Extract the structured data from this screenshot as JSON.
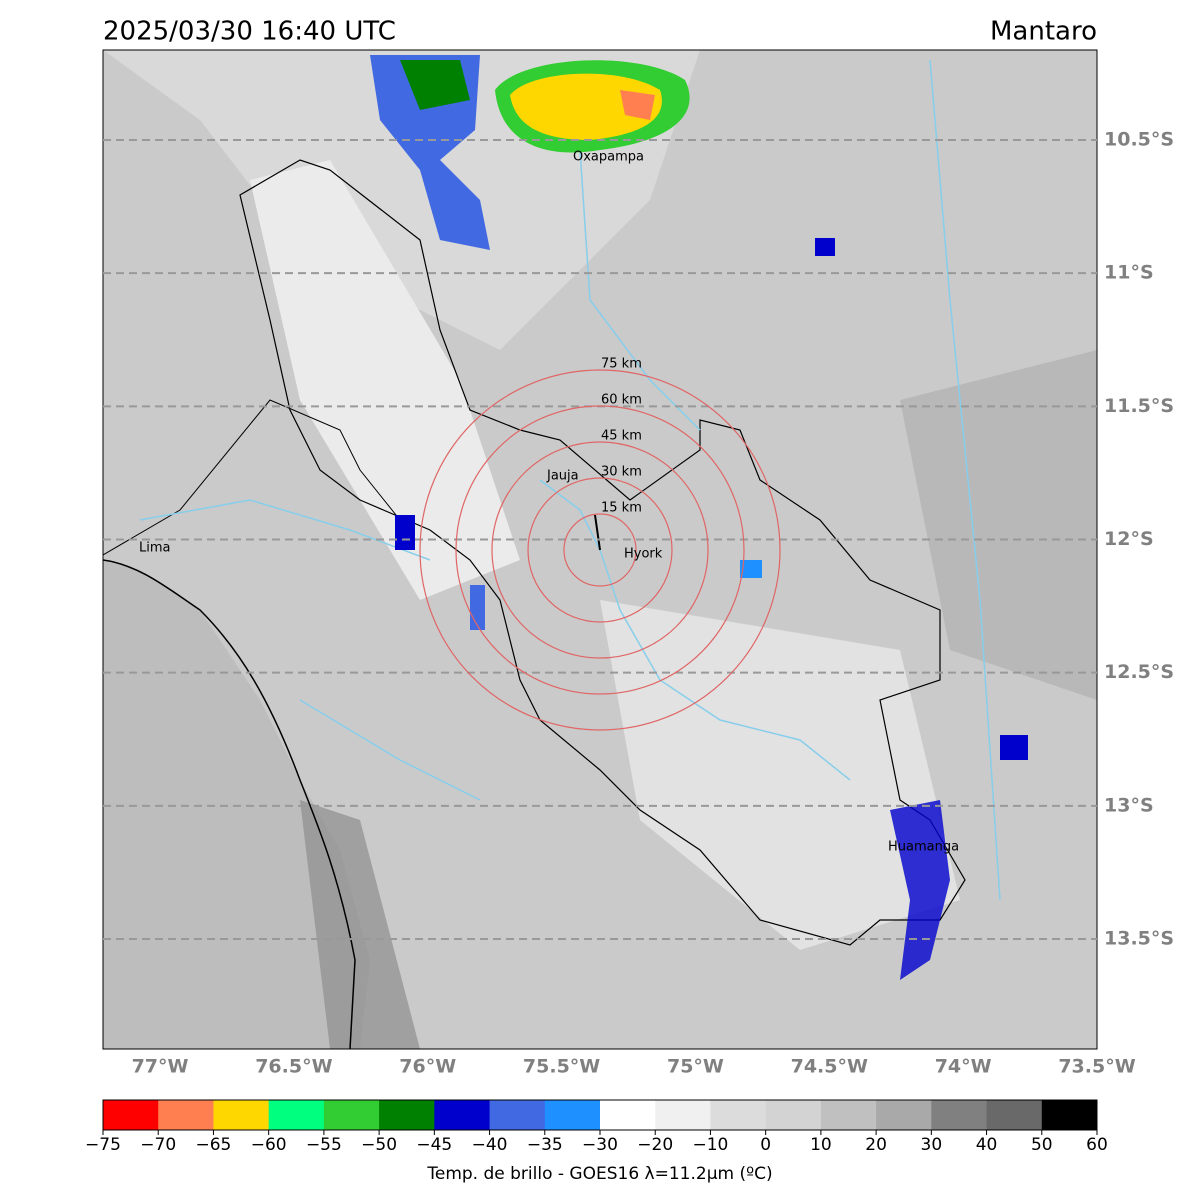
{
  "header": {
    "title": "2025/03/30 16:40 UTC",
    "region": "Mantaro"
  },
  "map": {
    "lon_range": [
      -77.213,
      -73.5
    ],
    "lat_range": [
      -10.162,
      -13.913
    ],
    "lat_ticks": [
      {
        "value": -10.5,
        "label": "10.5°S"
      },
      {
        "value": -11,
        "label": "11°S"
      },
      {
        "value": -11.5,
        "label": "11.5°S"
      },
      {
        "value": -12,
        "label": "12°S"
      },
      {
        "value": -12.5,
        "label": "12.5°S"
      },
      {
        "value": -13,
        "label": "13°S"
      },
      {
        "value": -13.5,
        "label": "13.5°S"
      }
    ],
    "lon_ticks": [
      {
        "value": -77,
        "label": "77°W"
      },
      {
        "value": -76.5,
        "label": "76.5°W"
      },
      {
        "value": -76,
        "label": "76°W"
      },
      {
        "value": -75.5,
        "label": "75.5°W"
      },
      {
        "value": -75,
        "label": "75°W"
      },
      {
        "value": -74.5,
        "label": "74.5°W"
      },
      {
        "value": -74,
        "label": "74°W"
      },
      {
        "value": -73.5,
        "label": "73.5°W"
      }
    ],
    "cities": [
      "Oxapampa",
      "Jauja",
      "Hyork",
      "Lima",
      "Huamanga"
    ],
    "rings": [
      {
        "radius_km": 15,
        "label": "15 km"
      },
      {
        "radius_km": 30,
        "label": "30 km"
      },
      {
        "radius_km": 45,
        "label": "45 km"
      },
      {
        "radius_km": 60,
        "label": "60 km"
      },
      {
        "radius_km": 75,
        "label": "75 km"
      }
    ]
  },
  "colorbar": {
    "label": "Temp. de brillo - GOES16 λ=11.2μm (ºC)",
    "colors": [
      "#ff0000",
      "#ff7f50",
      "#ffd700",
      "#00ff7f",
      "#32cd32",
      "#008000",
      "#0000cd",
      "#4169e1",
      "#1e90ff",
      "#ffffff",
      "#f0f0f0",
      "#dcdcdc",
      "#d3d3d3",
      "#c0c0c0",
      "#a9a9a9",
      "#808080",
      "#696969",
      "#000000"
    ],
    "ticks": [
      {
        "value": -75,
        "label": "−75"
      },
      {
        "value": -70,
        "label": "−70"
      },
      {
        "value": -65,
        "label": "−65"
      },
      {
        "value": -60,
        "label": "−60"
      },
      {
        "value": -55,
        "label": "−55"
      },
      {
        "value": -50,
        "label": "−50"
      },
      {
        "value": -45,
        "label": "−45"
      },
      {
        "value": -40,
        "label": "−40"
      },
      {
        "value": -35,
        "label": "−35"
      },
      {
        "value": -30,
        "label": "−30"
      },
      {
        "value": -20,
        "label": "−20"
      },
      {
        "value": -10,
        "label": "−10"
      },
      0,
      10,
      20,
      30,
      40,
      50,
      60
    ]
  }
}
